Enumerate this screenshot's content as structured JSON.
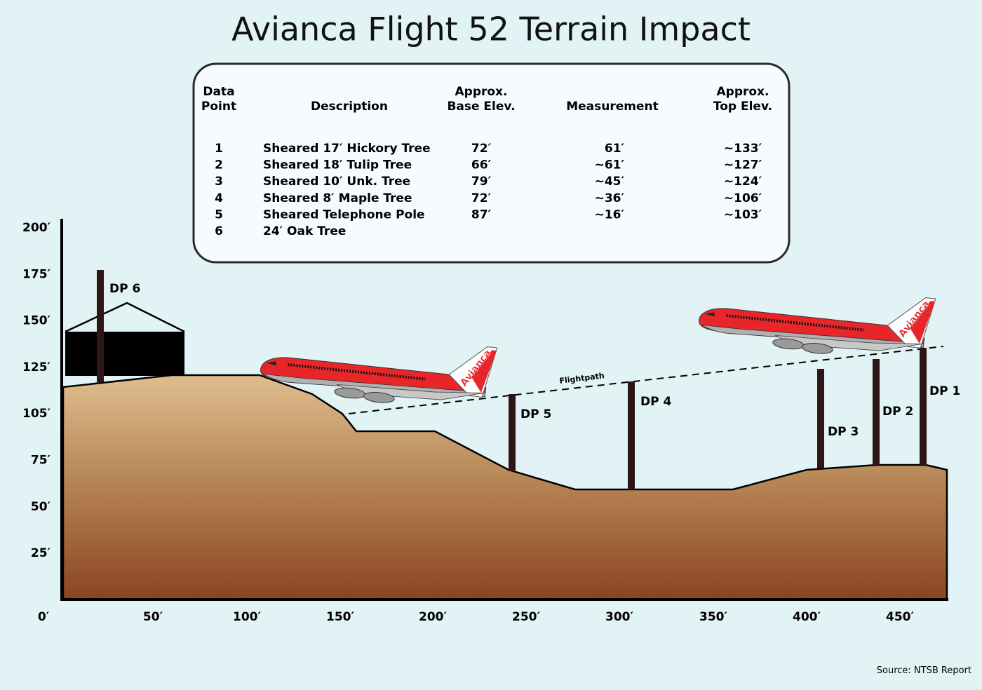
{
  "title": "Avianca Flight 52 Terrain Impact",
  "table": {
    "headers": [
      [
        "Data",
        "Point"
      ],
      [
        "Description"
      ],
      [
        "Approx.",
        "Base Elev."
      ],
      [
        "Measurement"
      ],
      [
        "Approx.",
        "Top Elev."
      ]
    ],
    "rows": [
      [
        "1",
        "Sheared 17′ Hickory Tree",
        "72′",
        "61′",
        "~133′"
      ],
      [
        "2",
        "Sheared 18′ Tulip Tree",
        "66′",
        "~61′",
        "~127′"
      ],
      [
        "3",
        "Sheared 10′ Unk. Tree",
        "79′",
        "~45′",
        "~124′"
      ],
      [
        "4",
        "Sheared 8′ Maple Tree",
        "72′",
        "~36′",
        "~106′"
      ],
      [
        "5",
        "Sheared Telephone Pole",
        "87′",
        "~16′",
        "~103′"
      ],
      [
        "6",
        "24′ Oak Tree"
      ]
    ]
  },
  "y_axis": {
    "labels": [
      "200′",
      "175′",
      "150′",
      "125′",
      "105′",
      "75′",
      "50′",
      "25′"
    ]
  },
  "x_axis": {
    "labels": [
      "0′",
      "50′",
      "100′",
      "150′",
      "200′",
      "250′",
      "300′",
      "350′",
      "400′",
      "450′"
    ]
  },
  "data_points": [
    {
      "label": "DP 1"
    },
    {
      "label": "DP 2"
    },
    {
      "label": "DP 3"
    },
    {
      "label": "DP 4"
    },
    {
      "label": "DP 5"
    },
    {
      "label": "DP 6"
    }
  ],
  "flightpath_label": "Flightpath",
  "planes": [
    {
      "livery": "Avianca"
    },
    {
      "livery": "Avianca"
    }
  ],
  "source": "Source: NTSB Report"
}
